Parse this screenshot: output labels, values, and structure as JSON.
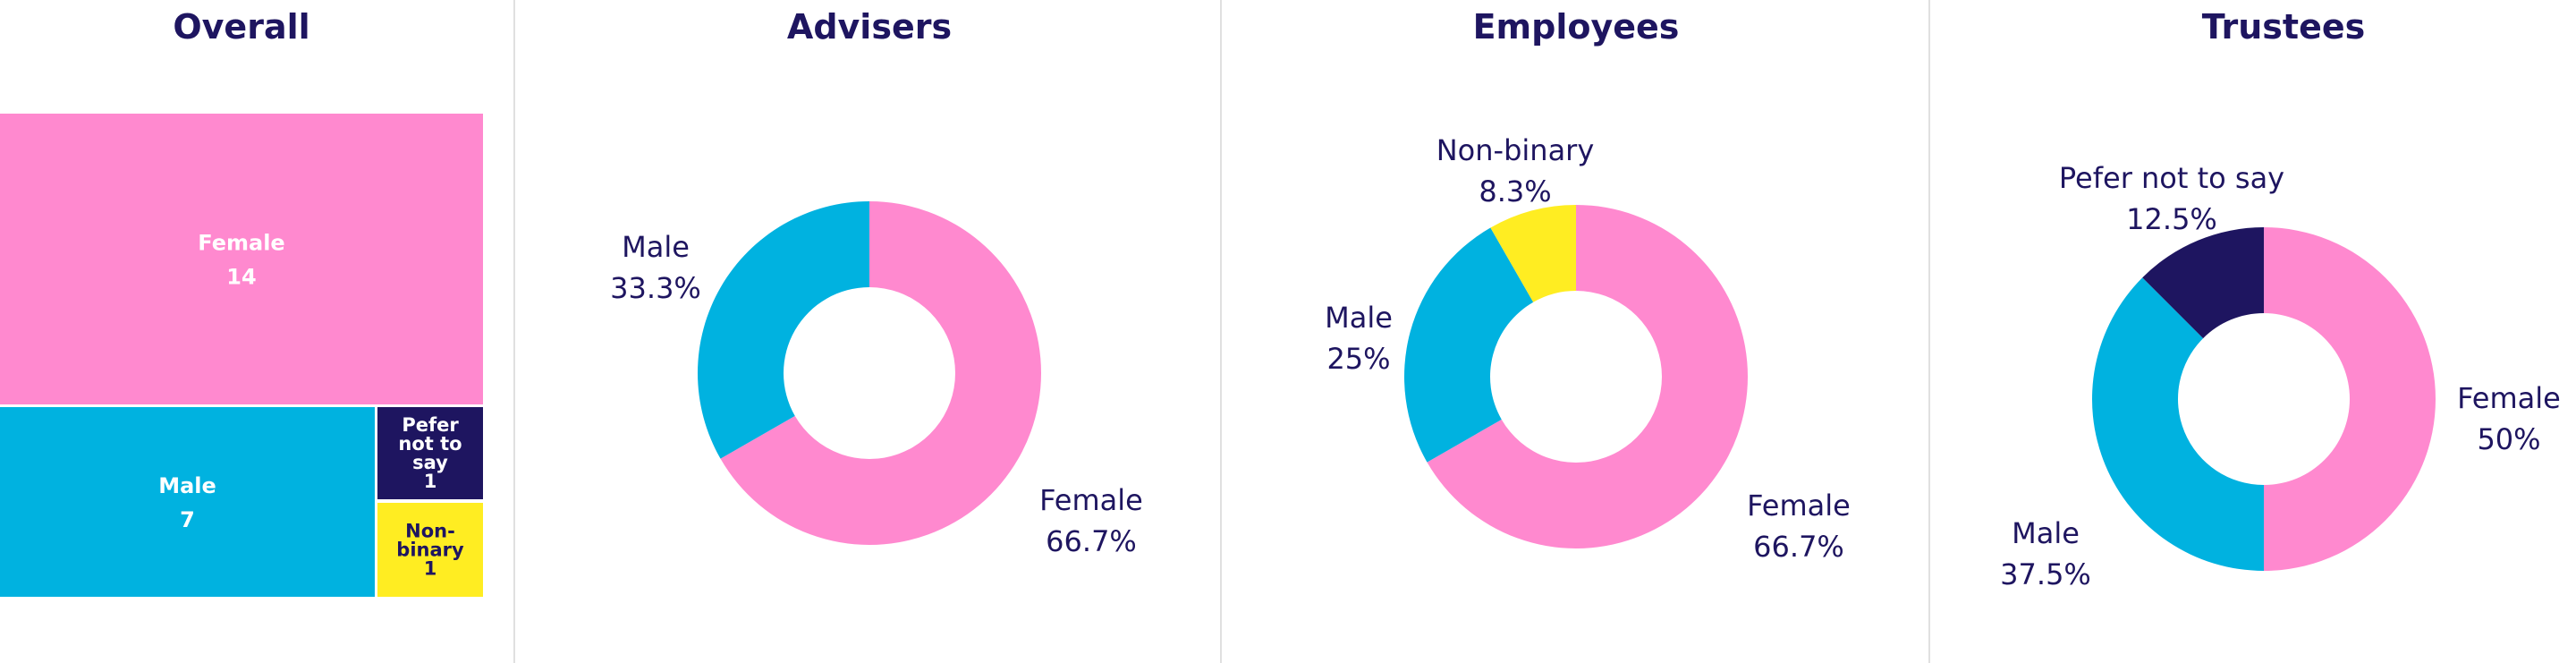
{
  "colors": {
    "Female": "#FF89CF",
    "Male": "#00B2E0",
    "Non-binary": "#FFED22",
    "Pefer not to say": "#1E1560",
    "text": "#1E1560",
    "divider": "#E0E0E0"
  },
  "chart_data": [
    {
      "type": "treemap",
      "title": "Overall",
      "categories": [
        "Female",
        "Male",
        "Pefer not to say",
        "Non-binary"
      ],
      "values": [
        14,
        7,
        1,
        1
      ],
      "display_labels": [
        [
          "Female"
        ],
        [
          "Male"
        ],
        [
          "Pefer",
          "not to",
          "say"
        ],
        [
          "Non-",
          "binary"
        ]
      ]
    },
    {
      "type": "pie",
      "title": "Advisers",
      "categories": [
        "Female",
        "Male"
      ],
      "values": [
        66.7,
        33.3
      ],
      "labels": [
        "66.7%",
        "33.3%"
      ]
    },
    {
      "type": "pie",
      "title": "Employees",
      "categories": [
        "Female",
        "Male",
        "Non-binary"
      ],
      "values": [
        66.7,
        25,
        8.3
      ],
      "labels": [
        "66.7%",
        "25%",
        "8.3%"
      ]
    },
    {
      "type": "pie",
      "title": "Trustees",
      "categories": [
        "Female",
        "Male",
        "Pefer not to say"
      ],
      "values": [
        50,
        37.5,
        12.5
      ],
      "labels": [
        "50%",
        "37.5%",
        "12.5%"
      ]
    }
  ]
}
